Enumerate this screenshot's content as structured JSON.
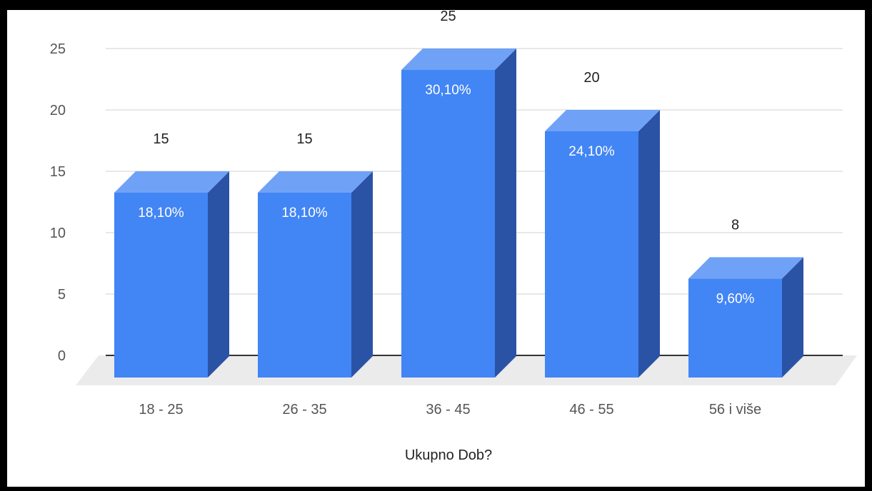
{
  "chart_data": {
    "type": "bar",
    "categories": [
      "18 - 25",
      "26 - 35",
      "36 - 45",
      "46 - 55",
      "56 i više"
    ],
    "values": [
      15,
      15,
      25,
      20,
      8
    ],
    "percent_labels": [
      "18,10%",
      "18,10%",
      "30,10%",
      "24,10%",
      "9,60%"
    ],
    "y_ticks": [
      "0",
      "5",
      "10",
      "15",
      "20",
      "25"
    ],
    "ylim": [
      0,
      25
    ],
    "xlabel": "Ukupno Dob?",
    "ylabel": "",
    "title": "",
    "grid": true,
    "legend": "none",
    "three_d": true,
    "colors": {
      "bar_front": "#4285F4",
      "bar_top": "#6FA2F7",
      "bar_side": "#2A53A5",
      "floor": "#EBEBEB",
      "grid": "#D9D9D9",
      "baseline": "#333333"
    }
  }
}
